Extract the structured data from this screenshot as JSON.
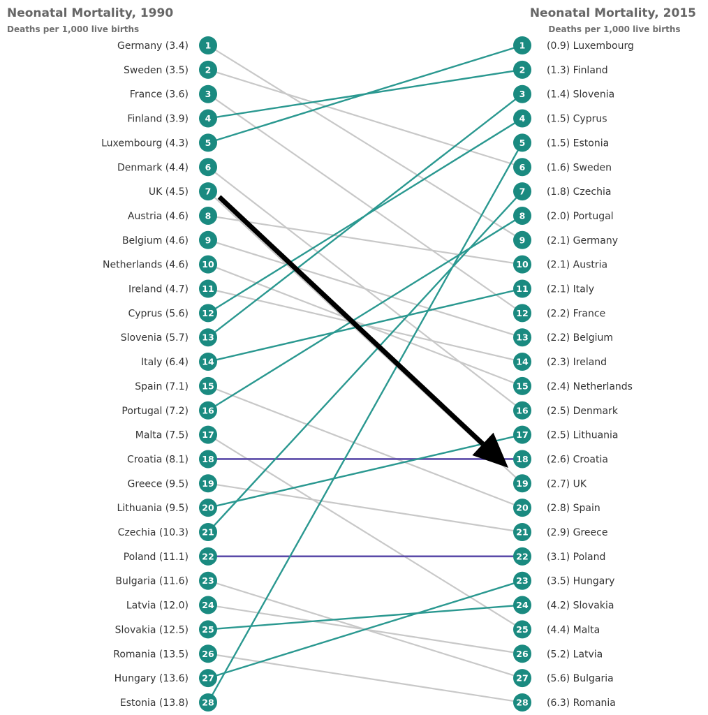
{
  "chart_data": {
    "type": "slope",
    "left": {
      "title": "Neonatal Mortality, 1990",
      "subtitle": "Deaths per 1,000 live births",
      "rows": [
        {
          "rank": 1,
          "country": "Germany",
          "value": 3.4,
          "label": "Germany (3.4)"
        },
        {
          "rank": 2,
          "country": "Sweden",
          "value": 3.5,
          "label": "Sweden (3.5)"
        },
        {
          "rank": 3,
          "country": "France",
          "value": 3.6,
          "label": "France (3.6)"
        },
        {
          "rank": 4,
          "country": "Finland",
          "value": 3.9,
          "label": "Finland (3.9)"
        },
        {
          "rank": 5,
          "country": "Luxembourg",
          "value": 4.3,
          "label": "Luxembourg (4.3)"
        },
        {
          "rank": 6,
          "country": "Denmark",
          "value": 4.4,
          "label": "Denmark (4.4)"
        },
        {
          "rank": 7,
          "country": "UK",
          "value": 4.5,
          "label": "UK (4.5)"
        },
        {
          "rank": 8,
          "country": "Austria",
          "value": 4.6,
          "label": "Austria (4.6)"
        },
        {
          "rank": 9,
          "country": "Belgium",
          "value": 4.6,
          "label": "Belgium (4.6)"
        },
        {
          "rank": 10,
          "country": "Netherlands",
          "value": 4.6,
          "label": "Netherlands (4.6)"
        },
        {
          "rank": 11,
          "country": "Ireland",
          "value": 4.7,
          "label": "Ireland (4.7)"
        },
        {
          "rank": 12,
          "country": "Cyprus",
          "value": 5.6,
          "label": "Cyprus (5.6)"
        },
        {
          "rank": 13,
          "country": "Slovenia",
          "value": 5.7,
          "label": "Slovenia (5.7)"
        },
        {
          "rank": 14,
          "country": "Italy",
          "value": 6.4,
          "label": "Italy (6.4)"
        },
        {
          "rank": 15,
          "country": "Spain",
          "value": 7.1,
          "label": "Spain (7.1)"
        },
        {
          "rank": 16,
          "country": "Portugal",
          "value": 7.2,
          "label": "Portugal (7.2)"
        },
        {
          "rank": 17,
          "country": "Malta",
          "value": 7.5,
          "label": "Malta (7.5)"
        },
        {
          "rank": 18,
          "country": "Croatia",
          "value": 8.1,
          "label": "Croatia (8.1)"
        },
        {
          "rank": 19,
          "country": "Greece",
          "value": 9.5,
          "label": "Greece (9.5)"
        },
        {
          "rank": 20,
          "country": "Lithuania",
          "value": 9.5,
          "label": "Lithuania (9.5)"
        },
        {
          "rank": 21,
          "country": "Czechia",
          "value": 10.3,
          "label": "Czechia (10.3)"
        },
        {
          "rank": 22,
          "country": "Poland",
          "value": 11.1,
          "label": "Poland (11.1)"
        },
        {
          "rank": 23,
          "country": "Bulgaria",
          "value": 11.6,
          "label": "Bulgaria (11.6)"
        },
        {
          "rank": 24,
          "country": "Latvia",
          "value": 12.0,
          "label": "Latvia (12.0)"
        },
        {
          "rank": 25,
          "country": "Slovakia",
          "value": 12.5,
          "label": "Slovakia (12.5)"
        },
        {
          "rank": 26,
          "country": "Romania",
          "value": 13.5,
          "label": "Romania (13.5)"
        },
        {
          "rank": 27,
          "country": "Hungary",
          "value": 13.6,
          "label": "Hungary (13.6)"
        },
        {
          "rank": 28,
          "country": "Estonia",
          "value": 13.8,
          "label": "Estonia (13.8)"
        }
      ]
    },
    "right": {
      "title": "Neonatal Mortality, 2015",
      "subtitle": "Deaths per 1,000 live births",
      "rows": [
        {
          "rank": 1,
          "country": "Luxembourg",
          "value": 0.9,
          "label": "(0.9) Luxembourg"
        },
        {
          "rank": 2,
          "country": "Finland",
          "value": 1.3,
          "label": "(1.3) Finland"
        },
        {
          "rank": 3,
          "country": "Slovenia",
          "value": 1.4,
          "label": "(1.4) Slovenia"
        },
        {
          "rank": 4,
          "country": "Cyprus",
          "value": 1.5,
          "label": "(1.5) Cyprus"
        },
        {
          "rank": 5,
          "country": "Estonia",
          "value": 1.5,
          "label": "(1.5) Estonia"
        },
        {
          "rank": 6,
          "country": "Sweden",
          "value": 1.6,
          "label": "(1.6) Sweden"
        },
        {
          "rank": 7,
          "country": "Czechia",
          "value": 1.8,
          "label": "(1.8) Czechia"
        },
        {
          "rank": 8,
          "country": "Portugal",
          "value": 2.0,
          "label": "(2.0) Portugal"
        },
        {
          "rank": 9,
          "country": "Germany",
          "value": 2.1,
          "label": "(2.1) Germany"
        },
        {
          "rank": 10,
          "country": "Austria",
          "value": 2.1,
          "label": "(2.1) Austria"
        },
        {
          "rank": 11,
          "country": "Italy",
          "value": 2.1,
          "label": "(2.1) Italy"
        },
        {
          "rank": 12,
          "country": "France",
          "value": 2.2,
          "label": "(2.2) France"
        },
        {
          "rank": 13,
          "country": "Belgium",
          "value": 2.2,
          "label": "(2.2) Belgium"
        },
        {
          "rank": 14,
          "country": "Ireland",
          "value": 2.3,
          "label": "(2.3) Ireland"
        },
        {
          "rank": 15,
          "country": "Netherlands",
          "value": 2.4,
          "label": "(2.4) Netherlands"
        },
        {
          "rank": 16,
          "country": "Denmark",
          "value": 2.5,
          "label": "(2.5) Denmark"
        },
        {
          "rank": 17,
          "country": "Lithuania",
          "value": 2.5,
          "label": "(2.5) Lithuania"
        },
        {
          "rank": 18,
          "country": "Croatia",
          "value": 2.6,
          "label": "(2.6) Croatia"
        },
        {
          "rank": 19,
          "country": "UK",
          "value": 2.7,
          "label": "(2.7) UK"
        },
        {
          "rank": 20,
          "country": "Spain",
          "value": 2.8,
          "label": "(2.8) Spain"
        },
        {
          "rank": 21,
          "country": "Greece",
          "value": 2.9,
          "label": "(2.9) Greece"
        },
        {
          "rank": 22,
          "country": "Poland",
          "value": 3.1,
          "label": "(3.1) Poland"
        },
        {
          "rank": 23,
          "country": "Hungary",
          "value": 3.5,
          "label": "(3.5) Hungary"
        },
        {
          "rank": 24,
          "country": "Slovakia",
          "value": 4.2,
          "label": "(4.2) Slovakia"
        },
        {
          "rank": 25,
          "country": "Malta",
          "value": 4.4,
          "label": "(4.4) Malta"
        },
        {
          "rank": 26,
          "country": "Latvia",
          "value": 5.2,
          "label": "(5.2) Latvia"
        },
        {
          "rank": 27,
          "country": "Bulgaria",
          "value": 5.6,
          "label": "(5.6) Bulgaria"
        },
        {
          "rank": 28,
          "country": "Romania",
          "value": 6.3,
          "label": "(6.3) Romania"
        }
      ]
    },
    "highlight": {
      "country": "UK",
      "from_rank": 7,
      "to_rank": 19,
      "style": "arrow"
    },
    "colors": {
      "badge": "#1a8a80",
      "improved": "#2a9890",
      "worsened": "#c8c8c8",
      "unchanged": "#5a4aa8",
      "arrow": "#000000",
      "title": "#666666",
      "label": "#333333"
    }
  }
}
